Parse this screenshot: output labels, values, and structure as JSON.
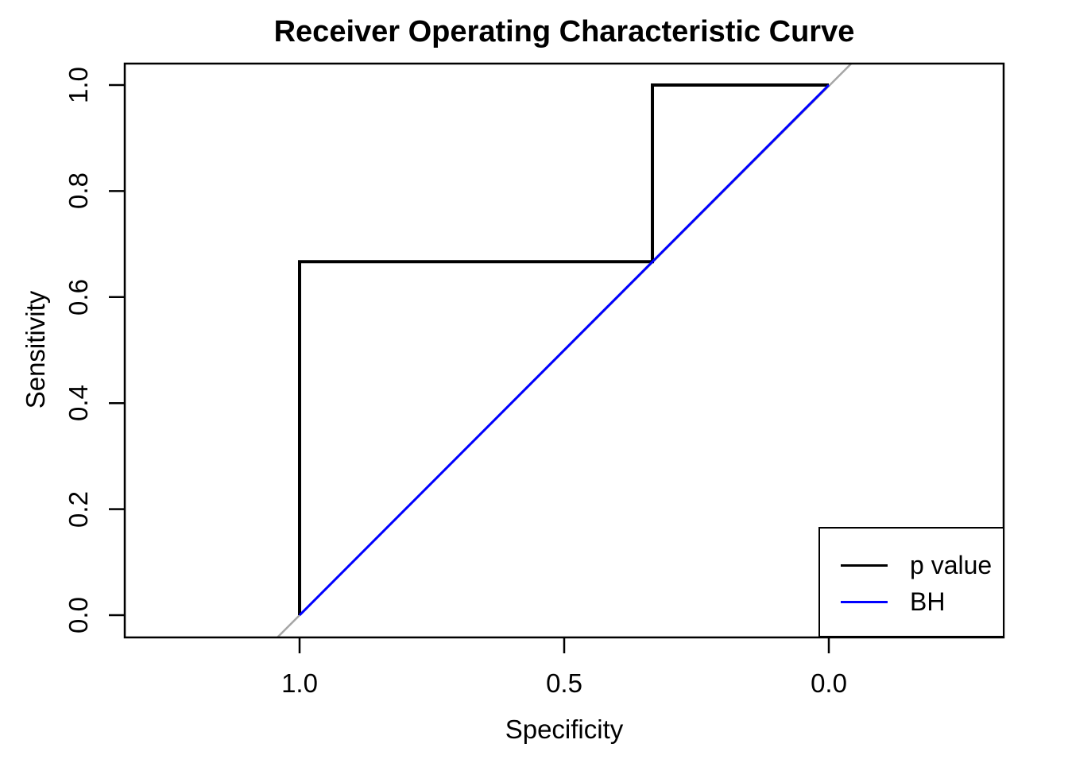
{
  "chart_data": {
    "type": "line",
    "title": "Receiver Operating Characteristic Curve",
    "xlabel": "Specificity",
    "ylabel": "Sensitivity",
    "x_axis": {
      "reversed": true,
      "tick_labels": [
        "1.0",
        "0.5",
        "0.0"
      ],
      "tick_values": [
        1.0,
        0.5,
        0.0
      ],
      "range": [
        1.0,
        0.0
      ]
    },
    "y_axis": {
      "tick_labels": [
        "0.0",
        "0.2",
        "0.4",
        "0.6",
        "0.8",
        "1.0"
      ],
      "tick_values": [
        0.0,
        0.2,
        0.4,
        0.6,
        0.8,
        1.0
      ],
      "range": [
        0.0,
        1.0
      ]
    },
    "grid": false,
    "series": [
      {
        "name": "p value",
        "color": "#000000",
        "line_width": 4,
        "points": [
          [
            1.0,
            0.0
          ],
          [
            1.0,
            0.6667
          ],
          [
            0.3333,
            0.6667
          ],
          [
            0.3333,
            1.0
          ],
          [
            0.0,
            1.0
          ]
        ]
      },
      {
        "name": "BH",
        "color": "#0000ff",
        "line_width": 3,
        "points": [
          [
            1.0,
            0.0
          ],
          [
            0.0,
            1.0
          ]
        ]
      }
    ],
    "reference_line": {
      "name": "chance-diagonal",
      "color": "#a6a6a6",
      "line_width": 2.5,
      "from": [
        1.042,
        -0.042
      ],
      "to": [
        -0.043,
        1.041
      ]
    },
    "legend": {
      "position": "bottomright",
      "entries": [
        {
          "label": "p value",
          "color": "#000000"
        },
        {
          "label": "BH",
          "color": "#0000ff"
        }
      ]
    }
  }
}
